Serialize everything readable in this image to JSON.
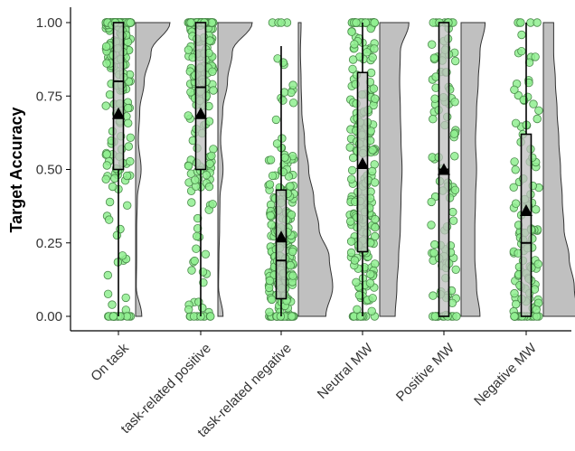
{
  "chart_data": {
    "type": "raincloud",
    "title": "",
    "xlabel": "",
    "ylabel": "Target Accuracy",
    "ylim": [
      0,
      1
    ],
    "yticks": [
      0.0,
      0.25,
      0.5,
      0.75,
      1.0
    ],
    "ytick_labels": [
      "0.00",
      "0.25",
      "0.50",
      "0.75",
      "1.00"
    ],
    "grid": false,
    "categories": [
      "On task",
      "task-related positive",
      "task-related negative",
      "Neutral MW",
      "Positive MW",
      "Negative MW"
    ],
    "series": [
      {
        "category": "On task",
        "box": {
          "q1": 0.5,
          "median": 0.8,
          "q3": 1.0,
          "whisker_low": 0.0,
          "whisker_high": 1.0
        },
        "mean": 0.69,
        "density": [
          0.18,
          0.02,
          0.03,
          0.03,
          0.05,
          0.16,
          0.08,
          0.12,
          0.25,
          0.45,
          1.0
        ],
        "n_points": 260
      },
      {
        "category": "task-related positive",
        "box": {
          "q1": 0.5,
          "median": 0.78,
          "q3": 1.0,
          "whisker_low": 0.0,
          "whisker_high": 1.0
        },
        "mean": 0.69,
        "density": [
          0.15,
          0.02,
          0.03,
          0.05,
          0.06,
          0.15,
          0.08,
          0.14,
          0.28,
          0.42,
          1.0
        ],
        "n_points": 220
      },
      {
        "category": "task-related negative",
        "box": {
          "q1": 0.06,
          "median": 0.19,
          "q3": 0.43,
          "whisker_low": 0.0,
          "whisker_high": 0.92
        },
        "mean": 0.27,
        "density": [
          0.8,
          1.0,
          0.9,
          0.6,
          0.45,
          0.3,
          0.18,
          0.1,
          0.08,
          0.06,
          0.08
        ],
        "n_points": 230
      },
      {
        "category": "Neutral MW",
        "box": {
          "q1": 0.22,
          "median": 0.51,
          "q3": 0.83,
          "whisker_low": 0.0,
          "whisker_high": 1.0
        },
        "mean": 0.52,
        "density": [
          0.45,
          0.5,
          0.55,
          0.6,
          0.62,
          0.65,
          0.62,
          0.6,
          0.58,
          0.6,
          0.85
        ],
        "n_points": 240
      },
      {
        "category": "Positive MW",
        "box": {
          "q1": 0.0,
          "median": 0.5,
          "q3": 1.0,
          "whisker_low": 0.0,
          "whisker_high": 1.0
        },
        "mean": 0.5,
        "density": [
          0.55,
          0.45,
          0.4,
          0.4,
          0.42,
          0.45,
          0.42,
          0.45,
          0.5,
          0.55,
          0.7
        ],
        "n_points": 110
      },
      {
        "category": "Negative MW",
        "box": {
          "q1": 0.0,
          "median": 0.25,
          "q3": 0.62,
          "whisker_low": 0.0,
          "whisker_high": 1.0
        },
        "mean": 0.36,
        "density": [
          1.0,
          0.9,
          0.75,
          0.6,
          0.55,
          0.5,
          0.45,
          0.4,
          0.35,
          0.3,
          0.3
        ],
        "n_points": 120
      }
    ],
    "colors": {
      "point_fill": "#90ee90",
      "point_stroke": "#4a8a4a",
      "box_fill": "#bebebe",
      "density_fill": "#c0c0c0",
      "line": "#000000",
      "axis": "#000000"
    }
  }
}
